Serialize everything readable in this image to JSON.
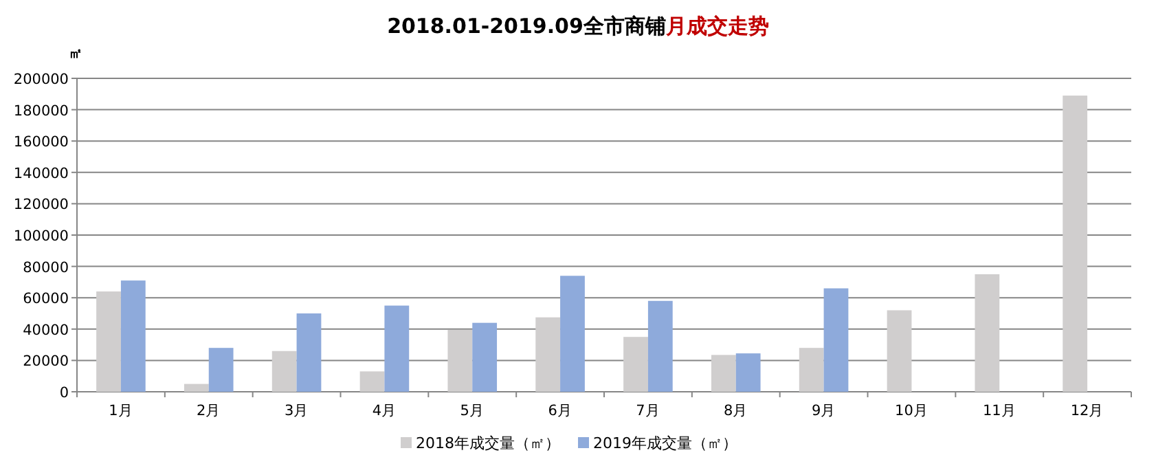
{
  "chart_data": {
    "type": "bar",
    "title": "2018.01-2019.09全市商铺",
    "subtitle": "月成交走势",
    "ylabel": "㎡",
    "categories": [
      "1月",
      "2月",
      "3月",
      "4月",
      "5月",
      "6月",
      "7月",
      "8月",
      "9月",
      "10月",
      "11月",
      "12月"
    ],
    "series": [
      {
        "name": "2018年成交量（㎡）",
        "color": "#d0cece",
        "values": [
          64000,
          5000,
          26000,
          13000,
          39500,
          47500,
          35000,
          23500,
          28000,
          52000,
          75000,
          189000
        ]
      },
      {
        "name": "2019年成交量（㎡）",
        "color": "#8eaadb",
        "values": [
          71000,
          28000,
          50000,
          55000,
          44000,
          74000,
          58000,
          24500,
          66000,
          null,
          null,
          null
        ]
      }
    ],
    "ylim": [
      0,
      200000
    ],
    "yticks": [
      0,
      20000,
      40000,
      60000,
      80000,
      100000,
      120000,
      140000,
      160000,
      180000,
      200000
    ],
    "grid": "y",
    "legend": "bottom"
  }
}
